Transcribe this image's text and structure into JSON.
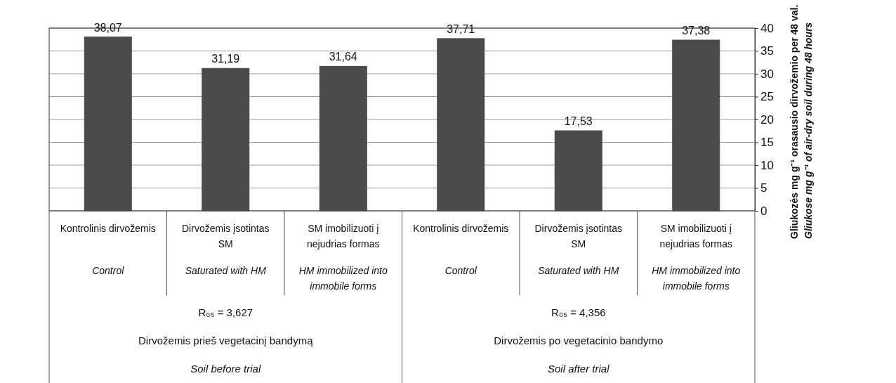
{
  "chart_data": {
    "type": "bar",
    "categories": [
      "Kontrolinis dirvožemis\nControl",
      "Dirvožemis įsotintas SM\nSaturated with HM",
      "SM imobilizuoti į nejudrias formas\nHM immobilized into immobile forms",
      "Kontrolinis dirvožemis\nControl",
      "Dirvožemis įsotintas SM\nSaturated with HM",
      "SM imobilizuoti į nejudrias formas\nHM immobilized into immobile forms"
    ],
    "values": [
      38.07,
      31.19,
      31.64,
      37.71,
      17.53,
      37.38
    ],
    "value_labels": [
      "38,07",
      "31,19",
      "31,64",
      "37,71",
      "17,53",
      "37,38"
    ],
    "color": "#4a4a4a",
    "ylabel": "Gliukozės mg g⁻¹ orasausio dirvožemio per 48 val.\nGliukose mg g⁻¹ of air-dry soil during 48 hours",
    "ylim": [
      0,
      40
    ],
    "yticks": [
      0,
      5,
      10,
      15,
      20,
      25,
      30,
      35,
      40
    ],
    "grid": "y",
    "annotations": [
      "R₀₅ = 3,627",
      "Dirvožemis prieš vegetacinį bandymą",
      "Soil before trial",
      "R₀₅ = 4,356",
      "Dirvožemis po vegetacinio bandymo",
      "Soil after trial"
    ]
  }
}
